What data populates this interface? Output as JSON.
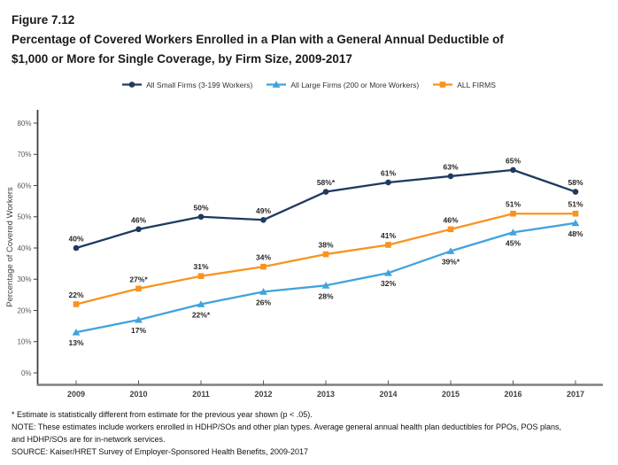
{
  "figure": {
    "label": "Figure 7.12",
    "title_line1": "Percentage of Covered Workers Enrolled in a Plan with a General Annual Deductible of",
    "title_line2": "$1,000 or More for Single Coverage, by Firm Size, 2009-2017"
  },
  "legend": [
    {
      "label": "All Small Firms (3-199 Workers)",
      "color": "#1F3A60",
      "marker": "circle"
    },
    {
      "label": "All Large Firms (200 or More Workers)",
      "color": "#41A3DC",
      "marker": "triangle"
    },
    {
      "label": "ALL FIRMS",
      "color": "#F7941E",
      "marker": "square"
    }
  ],
  "chart_data": {
    "type": "line",
    "title": "Percentage of Covered Workers Enrolled in a Plan with a General Annual Deductible of $1,000 or More for Single Coverage, by Firm Size, 2009-2017",
    "x": [
      "2009",
      "2010",
      "2011",
      "2012",
      "2013",
      "2014",
      "2015",
      "2016",
      "2017"
    ],
    "xlabel": "",
    "ylabel": "Percentage of Covered Workers",
    "ylim": [
      0,
      80
    ],
    "ytick_labels": [
      "0%",
      "10%",
      "20%",
      "30%",
      "40%",
      "50%",
      "60%",
      "70%",
      "80%"
    ],
    "grid": false,
    "legend_position": "top",
    "series": [
      {
        "name": "All Small Firms (3-199 Workers)",
        "color": "#1F3A60",
        "marker": "circle",
        "label_position": "above",
        "values": [
          40,
          46,
          50,
          49,
          58,
          61,
          63,
          65,
          58
        ],
        "labels": [
          "40%",
          "46%",
          "50%",
          "49%",
          "58%*",
          "61%",
          "63%",
          "65%",
          "58%"
        ]
      },
      {
        "name": "All Large Firms (200 or More Workers)",
        "color": "#41A3DC",
        "marker": "triangle",
        "label_position": "below",
        "values": [
          13,
          17,
          22,
          26,
          28,
          32,
          39,
          45,
          48
        ],
        "labels": [
          "13%",
          "17%",
          "22%*",
          "26%",
          "28%",
          "32%",
          "39%*",
          "45%",
          "48%"
        ]
      },
      {
        "name": "ALL FIRMS",
        "color": "#F7941E",
        "marker": "square",
        "label_position": "above",
        "values": [
          22,
          27,
          31,
          34,
          38,
          41,
          46,
          51,
          51
        ],
        "labels": [
          "22%",
          "27%*",
          "31%",
          "34%",
          "38%",
          "41%",
          "46%",
          "51%",
          "51%"
        ]
      }
    ]
  },
  "notes": [
    "* Estimate is statistically different from estimate for the previous year shown (p < .05).",
    "NOTE: These estimates include workers enrolled in HDHP/SOs and other plan types. Average general annual health plan deductibles for PPOs, POS plans,",
    "and HDHP/SOs are for in-network services.",
    "SOURCE: Kaiser/HRET Survey of Employer-Sponsored Health Benefits, 2009-2017"
  ],
  "colors": {
    "small_firms": "#1F3A60",
    "large_firms": "#41A3DC",
    "all_firms": "#F7941E",
    "x_axis": "#7F7F7F",
    "y_axis": "#3F3F3F",
    "tick_label": "#595959",
    "year_label": "#404040",
    "data_label": "#262626"
  }
}
